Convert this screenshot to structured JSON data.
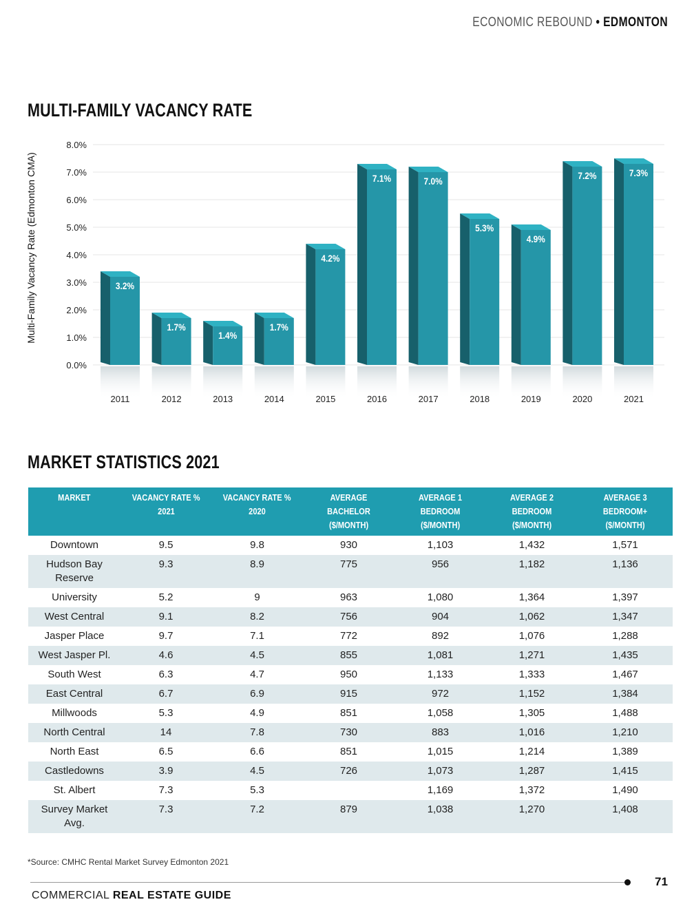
{
  "header": {
    "section_light": "ECONOMIC REBOUND",
    "separator": "•",
    "section_bold": "EDMONTON"
  },
  "colors": {
    "bar_front": "#2596a8",
    "bar_side": "#17606b",
    "bar_top": "#2fb2c3",
    "table_header": "#1f9db0",
    "alt_row": "#dfe9ec"
  },
  "chart_section_title": "MULTI-FAMILY VACANCY RATE",
  "chart_data": {
    "type": "bar",
    "title": "MULTI-FAMILY VACANCY RATE",
    "ylabel": "Multi-Family Vacancy Rate (Edmonton CMA)",
    "xlabel": "",
    "categories": [
      "2011",
      "2012",
      "2013",
      "2014",
      "2015",
      "2016",
      "2017",
      "2018",
      "2019",
      "2020",
      "2021"
    ],
    "values": [
      3.2,
      1.7,
      1.4,
      1.7,
      4.2,
      7.1,
      7.0,
      5.3,
      4.9,
      7.2,
      7.3
    ],
    "data_labels": [
      "3.2%",
      "1.7%",
      "1.4%",
      "1.7%",
      "4.2%",
      "7.1%",
      "7.0%",
      "5.3%",
      "4.9%",
      "7.2%",
      "7.3%"
    ],
    "yticks": [
      "0.0%",
      "1.0%",
      "2.0%",
      "3.0%",
      "4.0%",
      "5.0%",
      "6.0%",
      "7.0%",
      "8.0%"
    ],
    "ylim": [
      0,
      8
    ],
    "grid": true
  },
  "table_section_title": "MARKET STATISTICS 2021",
  "table": {
    "columns": [
      {
        "line1": "MARKET",
        "line2": ""
      },
      {
        "line1": "VACANCY RATE %",
        "line2": "2021"
      },
      {
        "line1": "VACANCY RATE %",
        "line2": "2020"
      },
      {
        "line1": "AVERAGE BACHELOR",
        "line2": "($/MONTH)"
      },
      {
        "line1": "AVERAGE 1 BEDROOM",
        "line2": "($/MONTH)"
      },
      {
        "line1": "AVERAGE 2 BEDROOM",
        "line2": "($/MONTH)"
      },
      {
        "line1": "AVERAGE 3",
        "line2": "BEDROOM+ ($/MONTH)"
      }
    ],
    "rows": [
      [
        "Downtown",
        "9.5",
        "9.8",
        "930",
        "1,103",
        "1,432",
        "1,571"
      ],
      [
        "Hudson Bay Reserve",
        "9.3",
        "8.9",
        "775",
        "956",
        "1,182",
        "1,136"
      ],
      [
        "University",
        "5.2",
        "9",
        "963",
        "1,080",
        "1,364",
        "1,397"
      ],
      [
        "West Central",
        "9.1",
        "8.2",
        "756",
        "904",
        "1,062",
        "1,347"
      ],
      [
        "Jasper Place",
        "9.7",
        "7.1",
        "772",
        "892",
        "1,076",
        "1,288"
      ],
      [
        "West Jasper Pl.",
        "4.6",
        "4.5",
        "855",
        "1,081",
        "1,271",
        "1,435"
      ],
      [
        "South West",
        "6.3",
        "4.7",
        "950",
        "1,133",
        "1,333",
        "1,467"
      ],
      [
        "East Central",
        "6.7",
        "6.9",
        "915",
        "972",
        "1,152",
        "1,384"
      ],
      [
        "Millwoods",
        "5.3",
        "4.9",
        "851",
        "1,058",
        "1,305",
        "1,488"
      ],
      [
        "North Central",
        "14",
        "7.8",
        "730",
        "883",
        "1,016",
        "1,210"
      ],
      [
        "North East",
        "6.5",
        "6.6",
        "851",
        "1,015",
        "1,214",
        "1,389"
      ],
      [
        "Castledowns",
        "3.9",
        "4.5",
        "726",
        "1,073",
        "1,287",
        "1,415"
      ],
      [
        "St. Albert",
        "7.3",
        "5.3",
        "",
        "1,169",
        "1,372",
        "1,490"
      ],
      [
        "Survey Market Avg.",
        "7.3",
        "7.2",
        "879",
        "1,038",
        "1,270",
        "1,408"
      ]
    ]
  },
  "source_note": "*Source: CMHC Rental Market Survey Edmonton 2021",
  "footer": {
    "brand_light": "COMMERCIAL",
    "brand_bold": "REAL ESTATE GUIDE",
    "page_number": "71"
  }
}
